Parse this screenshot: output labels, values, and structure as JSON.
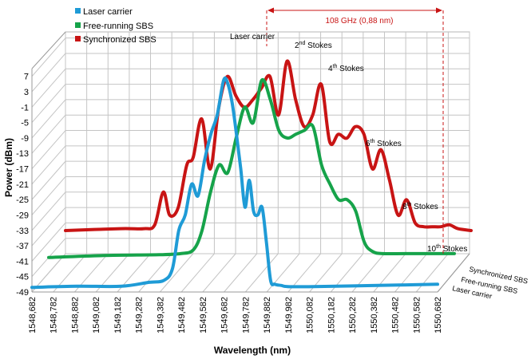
{
  "chart_data": {
    "type": "line",
    "xlabel": "Wavelength (nm)",
    "ylabel": "Power (dBm)",
    "ylim": [
      -49,
      9
    ],
    "xlim": [
      1548.682,
      1550.682
    ],
    "x_ticks": [
      "1548,682",
      "1548,782",
      "1548,882",
      "1549,082",
      "1549,182",
      "1549,282",
      "1549,382",
      "1549,482",
      "1549,582",
      "1549,682",
      "1549,782",
      "1549,882",
      "1549,982",
      "1550,082",
      "1550,182",
      "1550,282",
      "1550,382",
      "1550,482",
      "1550,582",
      "1550,682"
    ],
    "y_ticks": [
      "7",
      "3",
      "-1",
      "-5",
      "-9",
      "-13",
      "-17",
      "-21",
      "-25",
      "-29",
      "-33",
      "-37",
      "-41",
      "-45",
      "-49"
    ],
    "legend": {
      "placement": "top-left",
      "entries": [
        {
          "label": "Laser carrier",
          "color": "#1f9bd6"
        },
        {
          "label": "Free-running SBS",
          "color": "#16a34a"
        },
        {
          "label": "Synchronized SBS",
          "color": "#c81414"
        }
      ]
    },
    "depth_labels": [
      "Synchronized SBS",
      "Free-running SBS",
      "Laser carrier"
    ],
    "annotations": {
      "span_label": "108 GHz (0,88 nm)",
      "laser_carrier": "Laser carrier",
      "stokes_2": {
        "n": "2",
        "sup": "nd",
        "word": " Stokes"
      },
      "stokes_4": {
        "n": "4",
        "sup": "th",
        "word": " Stokes"
      },
      "stokes_6": {
        "n": "6",
        "sup": "th",
        "word": " Stokes"
      },
      "stokes_8": {
        "n": "8",
        "sup": "th",
        "word": " Stokes"
      },
      "stokes_10": {
        "n": "10",
        "sup": "th",
        "word": " Stokes"
      }
    },
    "series": [
      {
        "name": "Laser carrier",
        "color": "#1f9bd6",
        "depth": 0,
        "x": [
          1548.682,
          1548.9,
          1549.2,
          1549.33,
          1549.4,
          1549.44,
          1549.47,
          1549.5,
          1549.53,
          1549.56,
          1549.59,
          1549.62,
          1549.65,
          1549.68,
          1549.7,
          1549.72,
          1549.74,
          1549.76,
          1549.78,
          1549.8,
          1549.82,
          1549.84,
          1549.86,
          1549.88,
          1549.9,
          1549.92,
          1549.95,
          1549.98,
          1550.1,
          1550.4,
          1550.682
        ],
        "values": [
          -47.8,
          -47.5,
          -47.5,
          -46.5,
          -46,
          -43,
          -33,
          -29,
          -21,
          -24,
          -15,
          -8,
          -3,
          6,
          5,
          0,
          -8,
          -17,
          -27,
          -20,
          -28,
          -29,
          -27,
          -36,
          -46,
          -47,
          -47.3,
          -47.6,
          -47.6,
          -47.3,
          -47
        ]
      },
      {
        "name": "Free-running SBS",
        "color": "#16a34a",
        "depth": 1,
        "x": [
          1548.682,
          1549.0,
          1549.3,
          1549.4,
          1549.46,
          1549.5,
          1549.54,
          1549.58,
          1549.62,
          1549.66,
          1549.7,
          1549.74,
          1549.78,
          1549.82,
          1549.86,
          1549.9,
          1549.94,
          1549.98,
          1550.02,
          1550.06,
          1550.1,
          1550.14,
          1550.18,
          1550.22,
          1550.26,
          1550.3,
          1550.35,
          1550.45,
          1550.682
        ],
        "values": [
          -45,
          -44.5,
          -44.3,
          -44,
          -43,
          -38,
          -28,
          -21,
          -23,
          -14,
          -6,
          -10,
          1,
          -4,
          -12,
          -14,
          -13,
          -12,
          -11,
          -21,
          -26,
          -30,
          -30,
          -33,
          -41,
          -43.5,
          -44,
          -44,
          -44
        ]
      },
      {
        "name": "Synchronized SBS",
        "color": "#c81414",
        "depth": 2,
        "x": [
          1548.682,
          1549.0,
          1549.15,
          1549.2,
          1549.24,
          1549.27,
          1549.31,
          1549.35,
          1549.38,
          1549.42,
          1549.46,
          1549.5,
          1549.54,
          1549.58,
          1549.62,
          1549.66,
          1549.7,
          1549.74,
          1549.78,
          1549.82,
          1549.86,
          1549.9,
          1549.94,
          1549.98,
          1550.02,
          1550.06,
          1550.1,
          1550.14,
          1550.18,
          1550.22,
          1550.26,
          1550.3,
          1550.34,
          1550.38,
          1550.42,
          1550.46,
          1550.5,
          1550.54,
          1550.58,
          1550.62,
          1550.682
        ],
        "values": [
          -43,
          -42.5,
          -42.5,
          -41.5,
          -33,
          -39,
          -37,
          -26,
          -24,
          -14,
          -27,
          -11,
          -3,
          -8,
          -11,
          -9,
          -6,
          -3,
          -13,
          1,
          -9,
          -16,
          -13,
          -5,
          -20,
          -18,
          -19,
          -16,
          -18,
          -27,
          -22,
          -30,
          -39,
          -35,
          -41,
          -42,
          -42,
          -42,
          -41.5,
          -42.5,
          -43
        ]
      }
    ]
  }
}
